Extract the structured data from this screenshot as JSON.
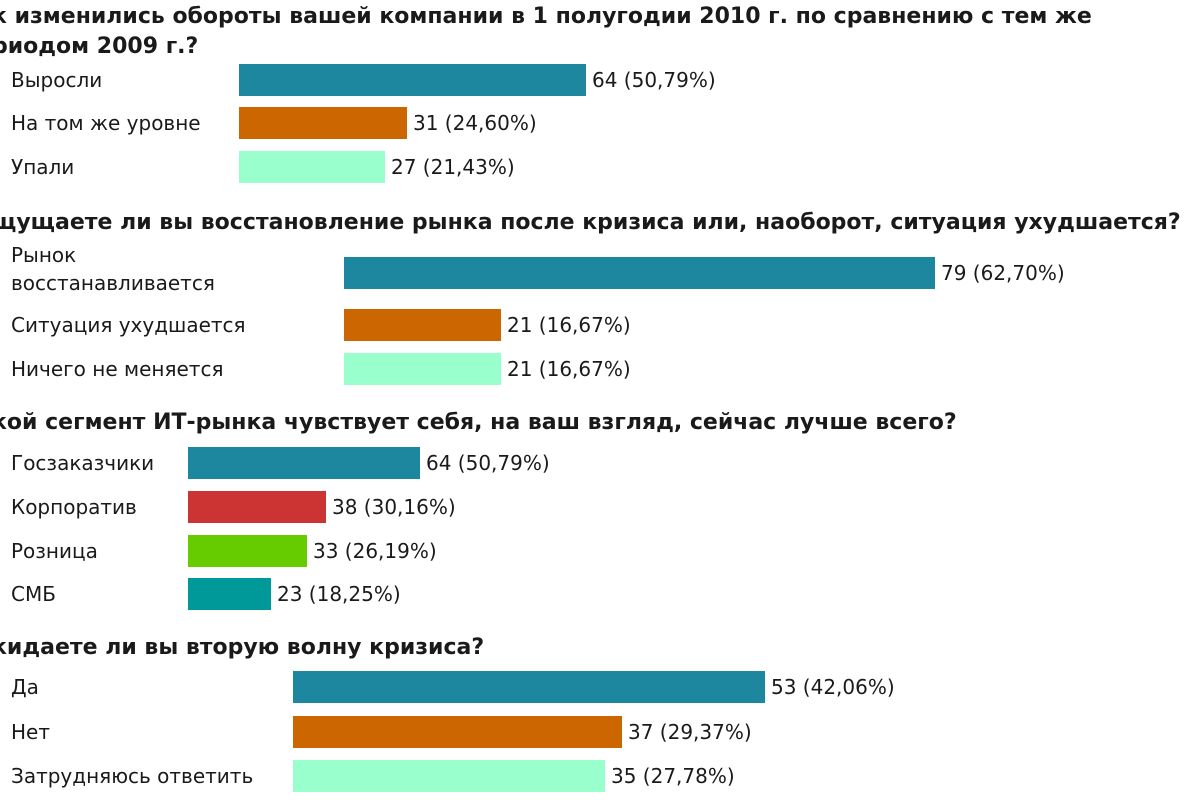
{
  "colors": {
    "teal_blue": "#1d87a0",
    "orange": "#cc6600",
    "mint": "#99ffcc",
    "red": "#cc3333",
    "green": "#66cc00",
    "teal": "#009999"
  },
  "chart_data": [
    {
      "type": "bar",
      "orientation": "horizontal",
      "title": "к изменились обороты вашей компании в 1 полугодии 2010 г. по сравнению с тем же\nриодом 2009 г.?",
      "categories": [
        "Выросли",
        "На том же уровне",
        "Упали"
      ],
      "values": [
        64,
        31,
        27
      ],
      "value_labels": [
        "64 (50,79%)",
        "31 (24,60%)",
        "27 (21,43%)"
      ],
      "colors": [
        "#1d87a0",
        "#cc6600",
        "#99ffcc"
      ]
    },
    {
      "type": "bar",
      "orientation": "horizontal",
      "title": "щущаете ли вы восстановление рынка после кризиса или, наоборот, ситуация ухудшается?",
      "categories": [
        "Рынок\nвосстанавливается",
        "Ситуация ухудшается",
        "Ничего не меняется"
      ],
      "values": [
        79,
        21,
        21
      ],
      "value_labels": [
        "79 (62,70%)",
        "21 (16,67%)",
        "21 (16,67%)"
      ],
      "colors": [
        "#1d87a0",
        "#cc6600",
        "#99ffcc"
      ]
    },
    {
      "type": "bar",
      "orientation": "horizontal",
      "title": "кой сегмент ИТ-рынка чувствует себя, на ваш взгляд, сейчас лучше всего?",
      "categories": [
        "Госзаказчики",
        "Корпоратив",
        "Розница",
        "СМБ"
      ],
      "values": [
        64,
        38,
        33,
        23
      ],
      "value_labels": [
        "64 (50,79%)",
        "38 (30,16%)",
        "33 (26,19%)",
        "23 (18,25%)"
      ],
      "colors": [
        "#1d87a0",
        "#cc3333",
        "#66cc00",
        "#009999"
      ]
    },
    {
      "type": "bar",
      "orientation": "horizontal",
      "title": "кидаете ли вы вторую волну кризиса?",
      "categories": [
        "Да",
        "Нет",
        "Затрудняюсь ответить"
      ],
      "values": [
        53,
        37,
        35
      ],
      "value_labels": [
        "53 (42,06%)",
        "37 (29,37%)",
        "35 (27,78%)"
      ],
      "colors": [
        "#1d87a0",
        "#cc6600",
        "#99ffcc"
      ]
    }
  ]
}
